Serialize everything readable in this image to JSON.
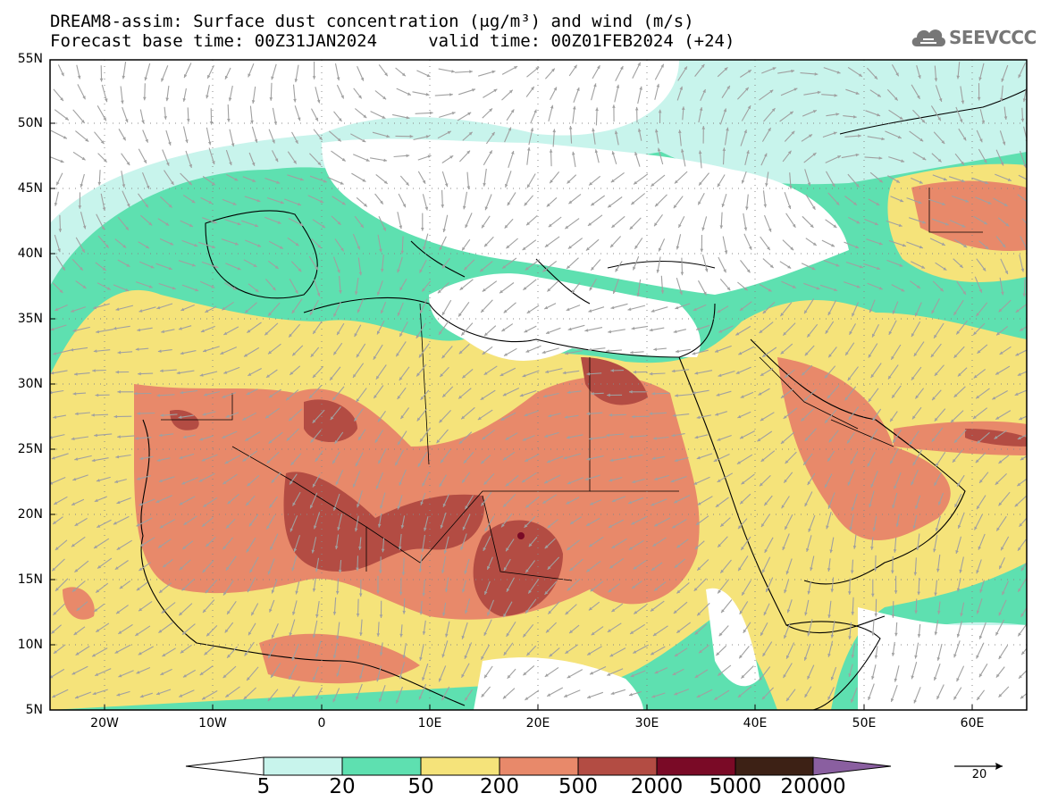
{
  "title_line1": "DREAM8-assim: Surface dust concentration (μg/m³) and wind (m/s)",
  "title_line2": "Forecast base time: 00Z31JAN2024     valid time: 00Z01FEB2024 (+24)",
  "logo": {
    "text": "SEEVCCC",
    "icon": "cloud-icon"
  },
  "y_ticks": [
    "55N",
    "50N",
    "45N",
    "40N",
    "35N",
    "30N",
    "25N",
    "20N",
    "15N",
    "10N",
    "5N"
  ],
  "x_ticks": [
    "20W",
    "10W",
    "0",
    "10E",
    "20E",
    "30E",
    "40E",
    "50E",
    "60E"
  ],
  "colorbar": {
    "labels": [
      "5",
      "20",
      "50",
      "200",
      "500",
      "2000",
      "5000",
      "20000"
    ],
    "colors": [
      "#c8f4ec",
      "#5ee0b0",
      "#f5e37a",
      "#e8896a",
      "#b34c43",
      "#7a0a26",
      "#3d2115",
      "#8a5fa0"
    ]
  },
  "vector_key": {
    "label": "20"
  },
  "colors": {
    "arrow": "#a0a0a0",
    "coast": "#000000",
    "grid": "#777777"
  }
}
